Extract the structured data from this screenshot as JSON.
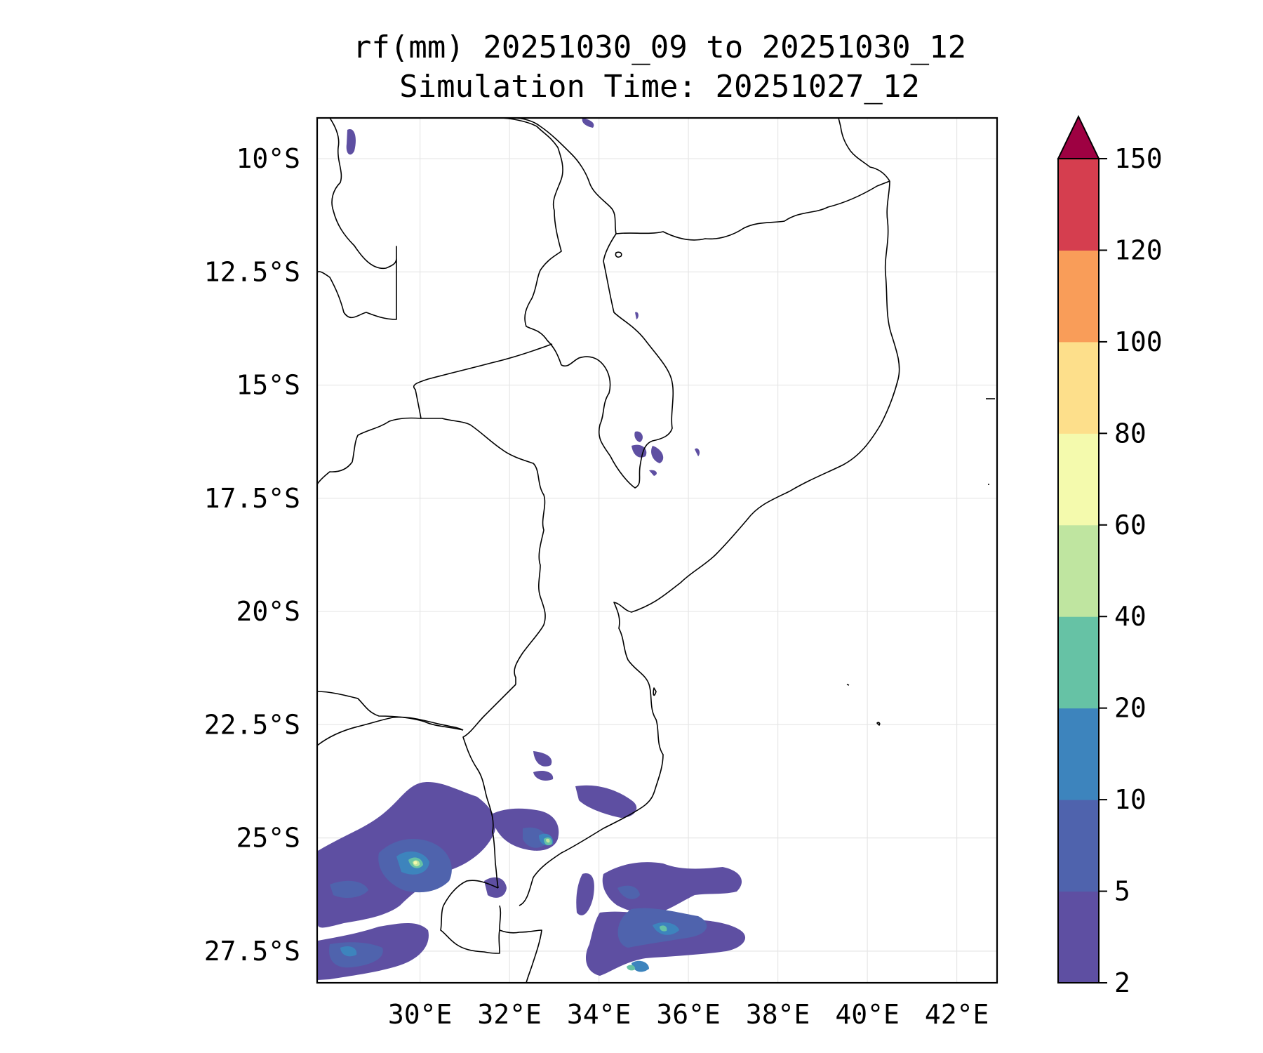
{
  "title": {
    "line1": "rf(mm) 20251030_09 to 20251030_12",
    "line2": "Simulation Time: 20251027_12"
  },
  "map": {
    "lat_labels": [
      "10°S",
      "12.5°S",
      "15°S",
      "17.5°S",
      "20°S",
      "22.5°S",
      "25°S",
      "27.5°S"
    ],
    "lat_values": [
      -10,
      -12.5,
      -15,
      -17.5,
      -20,
      -22.5,
      -25,
      -27.5
    ],
    "lon_labels": [
      "30°E",
      "32°E",
      "34°E",
      "36°E",
      "38°E",
      "40°E",
      "42°E"
    ],
    "lon_values": [
      30,
      32,
      34,
      36,
      38,
      40,
      42
    ],
    "extent": {
      "lon_min": 27.7,
      "lon_max": 42.9,
      "lat_min": -28.2,
      "lat_max": -9.1
    },
    "gridlines": true
  },
  "colorbar": {
    "levels": [
      "2",
      "5",
      "10",
      "20",
      "40",
      "60",
      "80",
      "100",
      "120",
      "150"
    ],
    "colors": [
      "#5e4fa2",
      "#4f63ad",
      "#3d84bd",
      "#66c2a5",
      "#bfe5a0",
      "#f4faad",
      "#fddf8b",
      "#f99d59",
      "#d53e4f"
    ],
    "extend_color": "#9e0142",
    "extend": "max",
    "orientation": "vertical"
  }
}
